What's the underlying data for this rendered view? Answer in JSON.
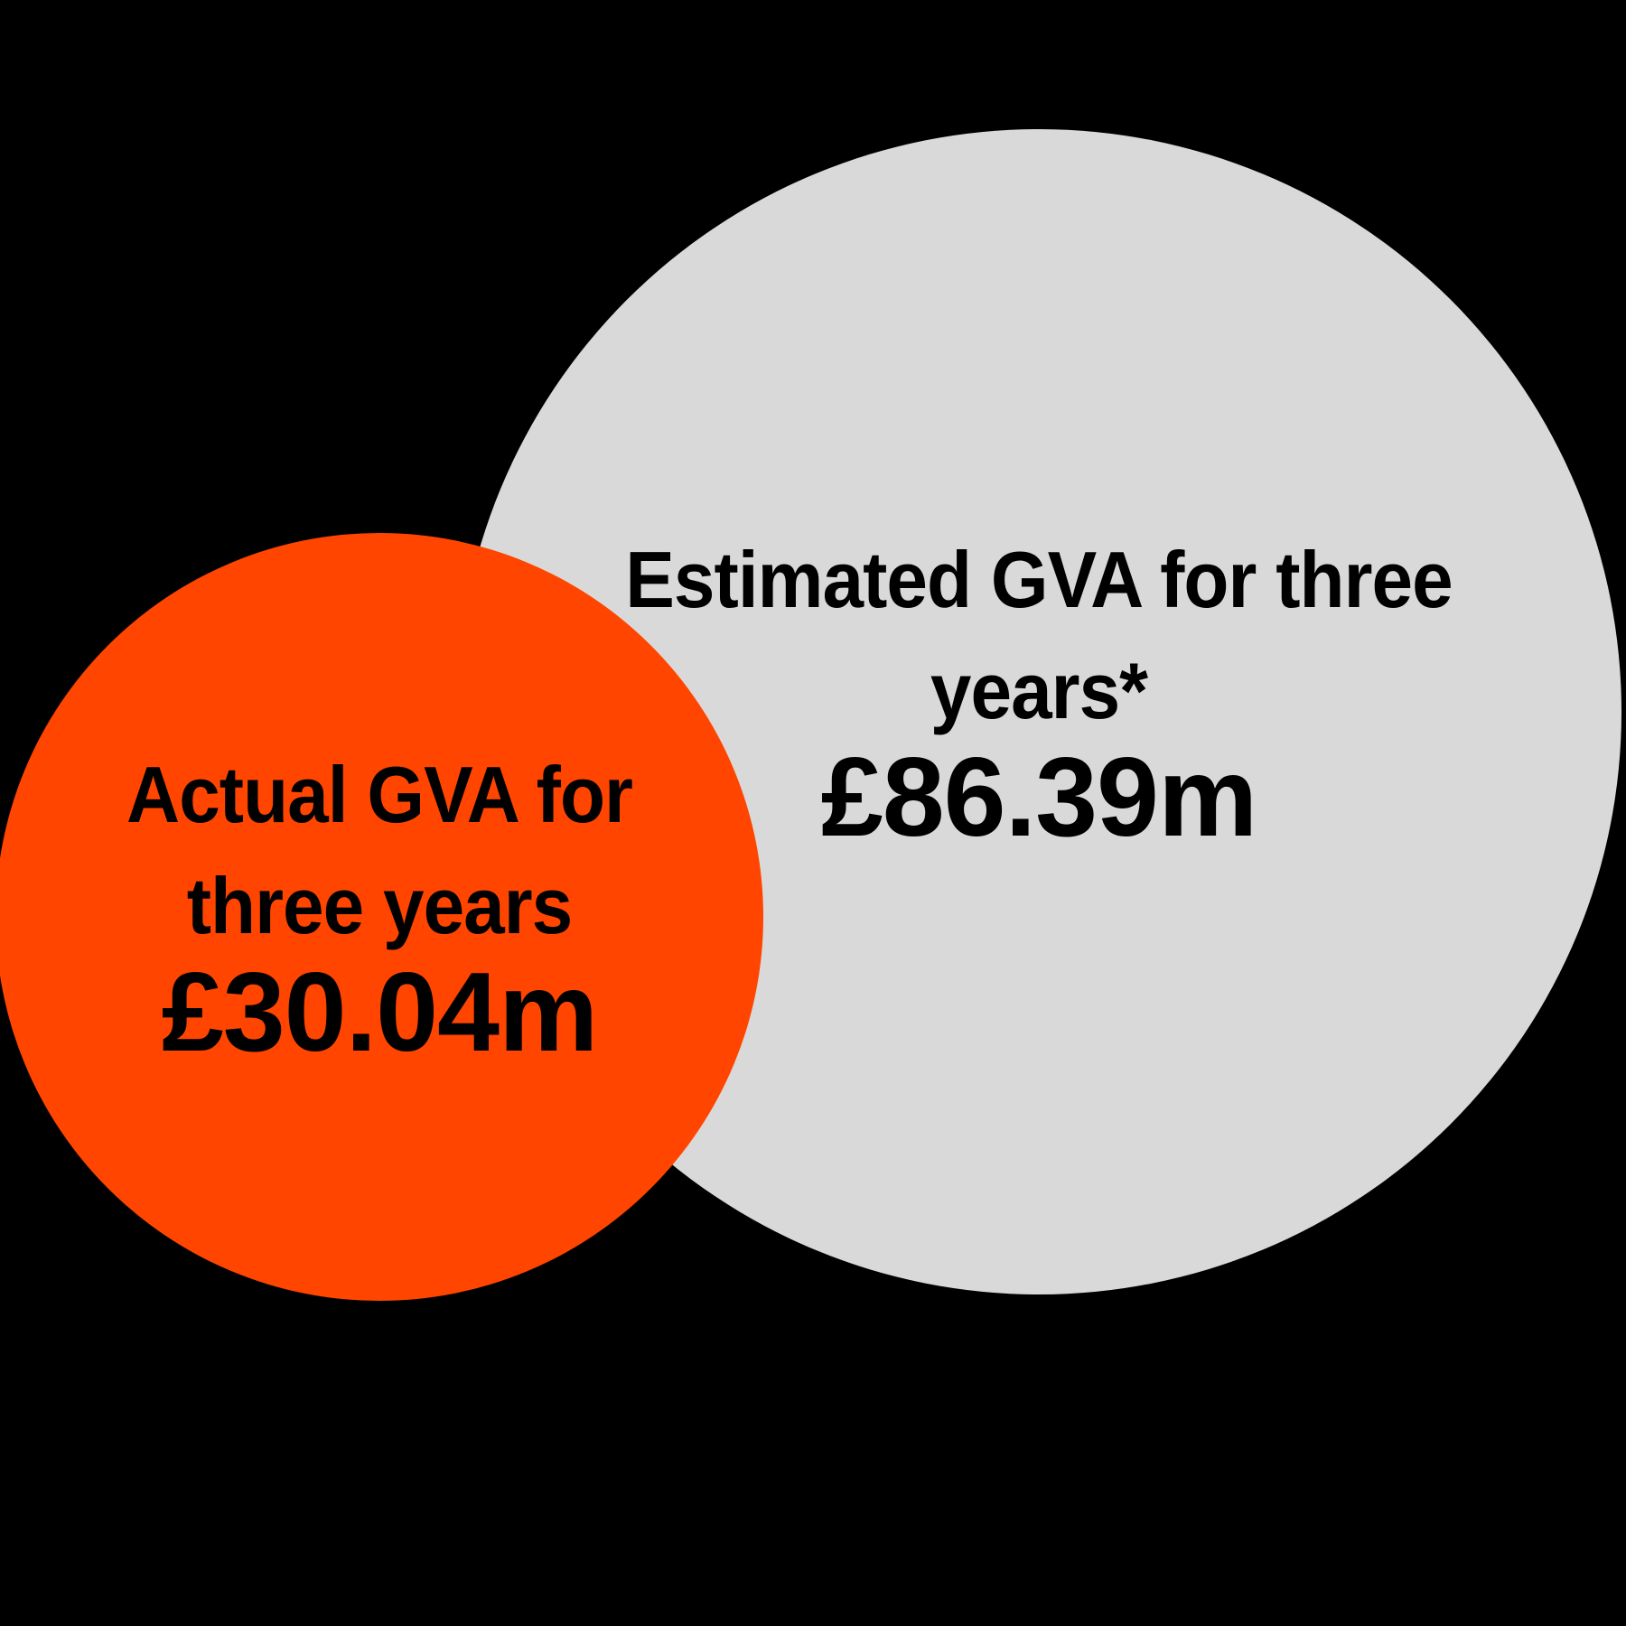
{
  "background_color": "#000000",
  "circles": {
    "estimated": {
      "label_line1": "Estimated GVA for three",
      "label_line2": "years*",
      "value": "£86.39m",
      "fill_color": "#D9D9D9",
      "text_color": "#000000"
    },
    "actual": {
      "label_line1": "Actual GVA for",
      "label_line2": "three years",
      "value": "£30.04m",
      "fill_color": "#FF4500",
      "text_color": "#000000"
    }
  },
  "chart_data": {
    "type": "area",
    "subtype": "proportional-circle-comparison",
    "categories": [
      "Estimated GVA for three years*",
      "Actual GVA for three years"
    ],
    "values": [
      86.39,
      30.04
    ],
    "unit": "£m",
    "value_labels": [
      "£86.39m",
      "£30.04m"
    ],
    "series_colors": [
      "#D9D9D9",
      "#FF4500"
    ],
    "title": "",
    "legend_position": "none",
    "annotations": [
      "* asterisk footnote marker on estimated value"
    ]
  }
}
